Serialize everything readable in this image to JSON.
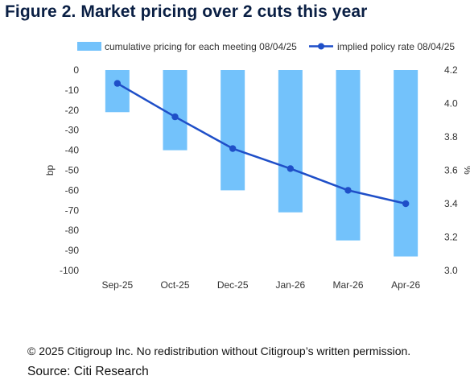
{
  "figure": {
    "title": "Figure 2. Market pricing over 2 cuts this year",
    "copyright": "© 2025 Citigroup Inc. No redistribution without Citigroup’s written permission.",
    "source": "Source: Citi Research"
  },
  "colors": {
    "bar": "#73c2fb",
    "line": "#1f4fc8",
    "title": "#0a1f44",
    "axis_text": "#333333"
  },
  "chart_data": {
    "type": "bar",
    "categories": [
      "Sep-25",
      "Oct-25",
      "Dec-25",
      "Jan-26",
      "Mar-26",
      "Apr-26"
    ],
    "series": [
      {
        "name": "cumulative pricing for each meeting  08/04/25",
        "type": "bar",
        "axis": "left",
        "values": [
          -21,
          -40,
          -60,
          -71,
          -85,
          -93
        ]
      },
      {
        "name": "implied policy rate 08/04/25",
        "type": "line",
        "axis": "right",
        "values": [
          4.12,
          3.92,
          3.73,
          3.61,
          3.48,
          3.4
        ]
      }
    ],
    "ylabel": "bp",
    "ylabel_right": "%",
    "ylim": [
      -100,
      0
    ],
    "ylim_right": [
      3.0,
      4.2
    ],
    "yticks": [
      0,
      -10,
      -20,
      -30,
      -40,
      -50,
      -60,
      -70,
      -80,
      -90,
      -100
    ],
    "yticks_right": [
      "4.2",
      "4.0",
      "3.8",
      "3.6",
      "3.4",
      "3.2",
      "3.0"
    ],
    "grid": false,
    "legend_position": "top"
  }
}
